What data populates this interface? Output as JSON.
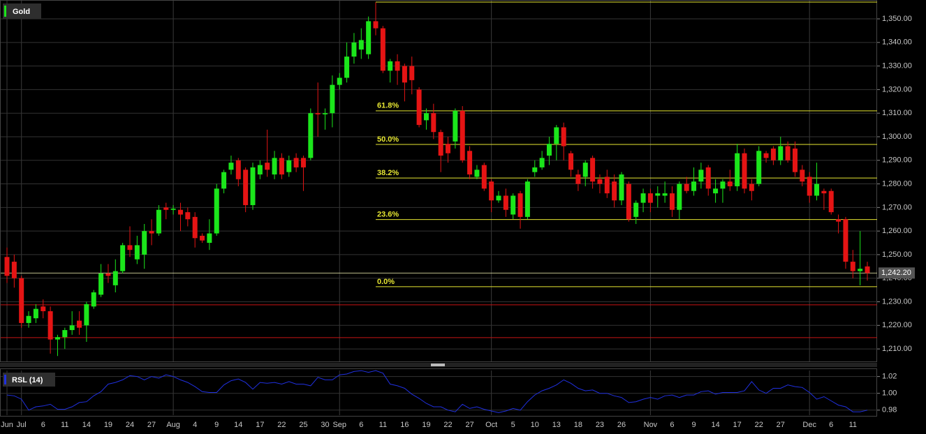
{
  "chart_data": [
    {
      "type": "candlestick",
      "title": "Gold",
      "open": [
        1249,
        1247,
        1240,
        1221,
        1223,
        1228,
        1226,
        1214,
        1215,
        1218,
        1222,
        1220,
        1228,
        1233,
        1242,
        1237,
        1243,
        1254,
        1248,
        1250,
        1260,
        1259,
        1270,
        1269,
        1269,
        1268,
        1266,
        1258,
        1255,
        1259,
        1278,
        1286,
        1290,
        1286,
        1271,
        1284,
        1289,
        1284,
        1291,
        1285,
        1291,
        1291,
        1291,
        1310,
        1309.5,
        1310,
        1322,
        1325,
        1334,
        1337,
        1335,
        1349,
        1346,
        1328,
        1332,
        1330,
        1330,
        1320,
        1307,
        1310,
        1302,
        1297,
        1298,
        1311,
        1294,
        1283,
        1288,
        1281,
        1273,
        1275,
        1267,
        1276,
        1266,
        1285,
        1287,
        1292,
        1297,
        1304,
        1293,
        1284,
        1283,
        1291,
        1282,
        1283,
        1281,
        1273,
        1280,
        1266,
        1272,
        1276,
        1275,
        1275,
        1276,
        1269,
        1280,
        1277,
        1281,
        1287,
        1276,
        1278,
        1281,
        1279,
        1293,
        1280,
        1280,
        1293,
        1295,
        1290,
        1296,
        1295,
        1286,
        1283,
        1275,
        1277,
        1277,
        1265,
        1265,
        1247,
        1243,
        1245
      ],
      "high": [
        1253,
        1250,
        1241,
        1226,
        1229,
        1231,
        1228,
        1216,
        1219,
        1226,
        1226,
        1230,
        1235,
        1246,
        1246,
        1248,
        1255,
        1262,
        1258,
        1263,
        1265,
        1271,
        1272,
        1271,
        1272,
        1270,
        1268,
        1259,
        1265,
        1280,
        1286,
        1292,
        1291,
        1287,
        1289,
        1290,
        1303,
        1294,
        1293,
        1292,
        1293,
        1292,
        1312,
        1323,
        1312,
        1326,
        1327,
        1340,
        1344,
        1346,
        1351,
        1357,
        1347,
        1333,
        1335,
        1331,
        1334,
        1321,
        1312,
        1314,
        1303,
        1300,
        1312,
        1313,
        1296,
        1288,
        1289,
        1282,
        1277,
        1278,
        1276,
        1277,
        1282,
        1290,
        1294,
        1300,
        1305,
        1306,
        1294,
        1286,
        1290,
        1292,
        1284,
        1286,
        1284,
        1285,
        1281,
        1273,
        1278,
        1278,
        1279,
        1281,
        1279,
        1281,
        1283,
        1287,
        1289,
        1288,
        1282,
        1282,
        1286,
        1297,
        1295,
        1282,
        1296,
        1294,
        1296,
        1300,
        1298,
        1298,
        1288,
        1285,
        1289,
        1278,
        1278,
        1267,
        1266,
        1252,
        1260,
        1247
      ],
      "low": [
        1238,
        1236,
        1219,
        1219,
        1221,
        1223,
        1208,
        1207,
        1210,
        1216,
        1216,
        1213,
        1227,
        1232,
        1238,
        1234,
        1242,
        1249,
        1246,
        1244,
        1254,
        1258,
        1265,
        1267,
        1260,
        1262,
        1253,
        1255,
        1252,
        1258,
        1276,
        1284,
        1279,
        1268,
        1269,
        1282,
        1283,
        1282,
        1282,
        1283,
        1285,
        1277,
        1290,
        1300,
        1303,
        1304,
        1320,
        1323,
        1331,
        1333,
        1333,
        1343,
        1327,
        1323,
        1322,
        1315,
        1318,
        1304,
        1303,
        1299,
        1285,
        1289,
        1295,
        1289,
        1282,
        1282,
        1277,
        1268,
        1272,
        1266,
        1265,
        1261,
        1265,
        1283,
        1286,
        1288,
        1290,
        1290,
        1283,
        1277,
        1279,
        1278,
        1276,
        1274,
        1270,
        1271,
        1264,
        1263,
        1268,
        1268,
        1270,
        1272,
        1266,
        1265,
        1276,
        1275,
        1278,
        1275,
        1272,
        1272,
        1277,
        1277,
        1276,
        1273,
        1279,
        1289,
        1288,
        1288,
        1289,
        1283,
        1279,
        1272,
        1273,
        1269,
        1267,
        1259,
        1244,
        1240,
        1237,
        1239
      ],
      "close": [
        1241,
        1240,
        1221,
        1224,
        1227,
        1226,
        1214,
        1215,
        1218,
        1220,
        1219,
        1229,
        1234,
        1242,
        1241,
        1243,
        1254,
        1252,
        1254,
        1260,
        1259,
        1269,
        1269,
        1269.5,
        1267,
        1265,
        1257,
        1256,
        1259,
        1278,
        1285,
        1289,
        1282,
        1271,
        1287,
        1288,
        1286,
        1291,
        1284,
        1290,
        1287,
        1287,
        1310,
        1309.5,
        1310,
        1322,
        1325,
        1334,
        1340,
        1341,
        1349,
        1346,
        1328,
        1332,
        1328,
        1323,
        1324,
        1305,
        1310,
        1302,
        1292,
        1293,
        1311,
        1290,
        1284,
        1286,
        1278,
        1273,
        1275,
        1269,
        1275,
        1266,
        1281,
        1287,
        1291,
        1297,
        1304,
        1296,
        1286,
        1280,
        1289,
        1281,
        1280,
        1276,
        1273,
        1284,
        1265,
        1272,
        1276,
        1272,
        1276,
        1276,
        1269,
        1280,
        1277,
        1281,
        1286,
        1278,
        1278,
        1281,
        1279,
        1293,
        1278,
        1277,
        1294,
        1291,
        1290,
        1296,
        1290,
        1285,
        1281,
        1275,
        1280,
        1276,
        1268,
        1264,
        1247,
        1243,
        1244,
        1242.2
      ],
      "up_color": "#1be61b",
      "down_color": "#e51414",
      "ylim": [
        1204.7,
        1358
      ],
      "yticks": [
        {
          "value": 1210,
          "label": "1,210.00"
        },
        {
          "value": 1220,
          "label": "1,220.00"
        },
        {
          "value": 1230,
          "label": "1,230.00"
        },
        {
          "value": 1240,
          "label": "1,240.00"
        },
        {
          "value": 1250,
          "label": "1,250.00"
        },
        {
          "value": 1260,
          "label": "1,260.00"
        },
        {
          "value": 1270,
          "label": "1,270.00"
        },
        {
          "value": 1280,
          "label": "1,280.00"
        },
        {
          "value": 1290,
          "label": "1,290.00"
        },
        {
          "value": 1300,
          "label": "1,300.00"
        },
        {
          "value": 1310,
          "label": "1,310.00"
        },
        {
          "value": 1320,
          "label": "1,320.00"
        },
        {
          "value": 1330,
          "label": "1,330.00"
        },
        {
          "value": 1340,
          "label": "1,340.00"
        },
        {
          "value": 1350,
          "label": "1,350.00"
        }
      ],
      "last_price": {
        "value": 1242.2,
        "label": "1,242.20"
      },
      "fib_levels": [
        {
          "label": "61.8%",
          "value": 1311.0
        },
        {
          "label": "50.0%",
          "value": 1296.75
        },
        {
          "label": "38.2%",
          "value": 1282.5
        },
        {
          "label": "23.6%",
          "value": 1264.9
        },
        {
          "label": "0.0%",
          "value": 1236.4
        }
      ],
      "fib_color": "#e6e632",
      "hlines": [
        {
          "value": 1357.1,
          "color": "#e6e632"
        },
        {
          "value": 1228.7,
          "color": "#c81414"
        },
        {
          "value": 1214.8,
          "color": "#c81414"
        }
      ],
      "grid": true
    },
    {
      "type": "line",
      "title": "RSL (14)",
      "color": "#2030e0",
      "values": [
        0.998,
        0.997,
        0.993,
        0.98,
        0.984,
        0.985,
        0.987,
        0.981,
        0.981,
        0.984,
        0.989,
        0.99,
        0.997,
        1.002,
        1.011,
        1.013,
        1.016,
        1.021,
        1.02,
        1.016,
        1.02,
        1.018,
        1.022,
        1.02,
        1.016,
        1.013,
        1.008,
        1.002,
        1.001,
        1.001,
        1.01,
        1.015,
        1.017,
        1.013,
        1.005,
        1.013,
        1.012,
        1.013,
        1.011,
        1.014,
        1.011,
        1.011,
        1.009,
        1.019,
        1.016,
        1.016,
        1.022,
        1.023,
        1.026,
        1.027,
        1.025,
        1.027,
        1.024,
        1.011,
        1.009,
        1.006,
        0.999,
        0.994,
        0.988,
        0.984,
        0.984,
        0.98,
        0.978,
        0.987,
        0.982,
        0.984,
        0.981,
        0.979,
        0.977,
        0.979,
        0.982,
        0.98,
        0.99,
        0.998,
        1.003,
        1.006,
        1.01,
        1.016,
        1.012,
        1.006,
        1.003,
        1.004,
        1.0,
        1.0,
        0.997,
        0.995,
        0.989,
        0.99,
        0.993,
        0.995,
        0.993,
        0.997,
        0.998,
        0.995,
        0.998,
        0.998,
        1.002,
        1.003,
        0.999,
        1.001,
        1.001,
        1.001,
        1.003,
        1.014,
        1.004,
        1.0,
        1.006,
        1.006,
        1.01,
        1.008,
        1.007,
        1.001,
        0.993,
        0.996,
        0.991,
        0.986,
        0.984,
        0.978,
        0.978,
        0.98
      ],
      "categories": [
        "Jun",
        null,
        "Jul",
        null,
        null,
        "6",
        null,
        null,
        "11",
        null,
        null,
        "14",
        null,
        null,
        "19",
        null,
        null,
        "24",
        null,
        null,
        "27",
        null,
        null,
        "Aug",
        null,
        null,
        "4",
        null,
        null,
        "9",
        null,
        null,
        "14",
        null,
        null,
        "17",
        null,
        null,
        "22",
        null,
        null,
        "25",
        null,
        null,
        "30",
        null,
        "Sep",
        null,
        null,
        "6",
        null,
        null,
        "11",
        null,
        null,
        "16",
        null,
        null,
        "19",
        null,
        null,
        "22",
        null,
        null,
        "27",
        null,
        null,
        "Oct",
        null,
        null,
        "5",
        null,
        null,
        "10",
        null,
        null,
        "13",
        null,
        null,
        "18",
        null,
        null,
        "23",
        null,
        null,
        "26",
        null,
        null,
        null,
        "Nov",
        null,
        null,
        "6",
        null,
        null,
        "9",
        null,
        null,
        "14",
        null,
        null,
        "17",
        null,
        null,
        "22",
        null,
        null,
        "27",
        null,
        null,
        null,
        "Dec",
        null,
        null,
        "6",
        null,
        null,
        "11",
        null,
        null
      ],
      "ylim": [
        0.974,
        1.028
      ],
      "yticks": [
        0.98,
        {
          "value": 1,
          "label": "1.00"
        },
        1.02
      ],
      "grid": true
    }
  ]
}
